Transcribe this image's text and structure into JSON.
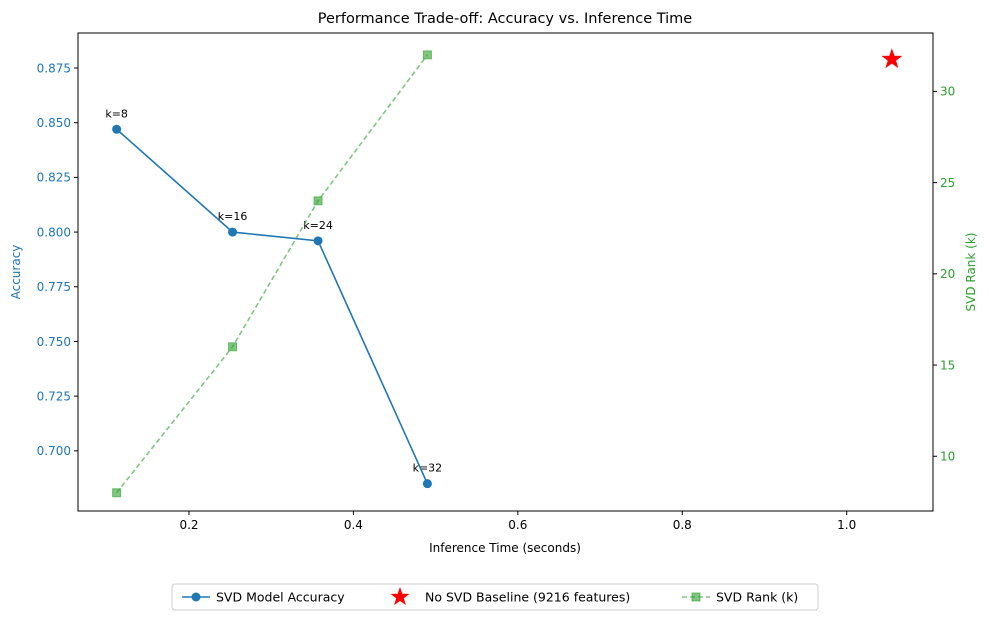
{
  "chart_data": {
    "type": "line",
    "title": "Performance Trade-off: Accuracy vs. Inference Time",
    "xlabel": "Inference Time (seconds)",
    "ylabel_left": "Accuracy",
    "ylabel_right": "SVD Rank (k)",
    "xlim": [
      0.065,
      1.105
    ],
    "ylim_left": [
      0.6725,
      0.891
    ],
    "ylim_right": [
      7.0,
      33.2
    ],
    "xticks": [
      0.2,
      0.4,
      0.6,
      0.8,
      1.0
    ],
    "xtick_labels": [
      "0.2",
      "0.4",
      "0.6",
      "0.8",
      "1.0"
    ],
    "yticks_left": [
      0.7,
      0.725,
      0.75,
      0.775,
      0.8,
      0.825,
      0.85,
      0.875
    ],
    "ytick_labels_left": [
      "0.700",
      "0.725",
      "0.750",
      "0.775",
      "0.800",
      "0.825",
      "0.850",
      "0.875"
    ],
    "yticks_right": [
      10,
      15,
      20,
      25,
      30
    ],
    "ytick_labels_right": [
      "10",
      "15",
      "20",
      "25",
      "30"
    ],
    "grid": false,
    "legend_placement": "bottom-center (below plot)",
    "colors": {
      "accuracy": "#1f77b4",
      "rank": "#2ca02c",
      "baseline": "#ff0000",
      "left_axis": "#1f77b4",
      "right_axis": "#2ca02c"
    },
    "series": [
      {
        "name": "SVD Model Accuracy",
        "axis": "left",
        "marker": "circle",
        "linestyle": "solid",
        "x": [
          0.112,
          0.253,
          0.357,
          0.49
        ],
        "y": [
          0.847,
          0.8,
          0.796,
          0.685
        ],
        "annotations": [
          "k=8",
          "k=16",
          "k=24",
          "k=32"
        ]
      },
      {
        "name": "No SVD Baseline (9216 features)",
        "axis": "left",
        "marker": "star",
        "linestyle": "none",
        "x": [
          1.055
        ],
        "y": [
          0.879
        ]
      },
      {
        "name": "SVD Rank (k)",
        "axis": "right",
        "marker": "square",
        "linestyle": "dashed",
        "x": [
          0.112,
          0.253,
          0.357,
          0.49
        ],
        "y": [
          8,
          16,
          24,
          32
        ]
      }
    ]
  }
}
